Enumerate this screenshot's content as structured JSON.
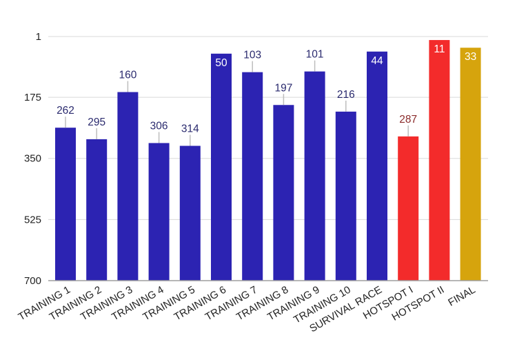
{
  "chart_data": {
    "type": "bar",
    "title": "",
    "xlabel": "",
    "ylabel": "",
    "y_axis_reversed": true,
    "ylim": [
      1,
      700
    ],
    "yticks": [
      1,
      175,
      350,
      525,
      700
    ],
    "grid": true,
    "legend": "none",
    "categories": [
      "TRAINING 1",
      "TRAINING 2",
      "TRAINING 3",
      "TRAINING 4",
      "TRAINING 5",
      "TRAINING 6",
      "TRAINING 7",
      "TRAINING 8",
      "TRAINING 9",
      "TRAINING 10",
      "SURVIVAL RACE",
      "HOTSPOT I",
      "HOTSPOT II",
      "FINAL"
    ],
    "values": [
      262,
      295,
      160,
      306,
      314,
      50,
      103,
      197,
      101,
      216,
      44,
      287,
      11,
      33
    ],
    "labels": [
      "262",
      "295",
      "160",
      "306",
      "314",
      "50",
      "103",
      "197",
      "101",
      "216",
      "44",
      "287",
      "11",
      "33"
    ],
    "colors": [
      "#2c23b2",
      "#2c23b2",
      "#2c23b2",
      "#2c23b2",
      "#2c23b2",
      "#2c23b2",
      "#2c23b2",
      "#2c23b2",
      "#2c23b2",
      "#2c23b2",
      "#2c23b2",
      "#f32b2b",
      "#f32b2b",
      "#d6a40d"
    ],
    "label_colors": [
      "#2a2a6e",
      "#2a2a6e",
      "#2a2a6e",
      "#2a2a6e",
      "#2a2a6e",
      "#ffffff",
      "#2a2a6e",
      "#2a2a6e",
      "#2a2a6e",
      "#2a2a6e",
      "#ffffff",
      "#8a2a2a",
      "#ffffff",
      "#ffffff"
    ],
    "label_inside": [
      false,
      false,
      false,
      false,
      false,
      true,
      false,
      false,
      false,
      false,
      true,
      false,
      true,
      true
    ]
  }
}
